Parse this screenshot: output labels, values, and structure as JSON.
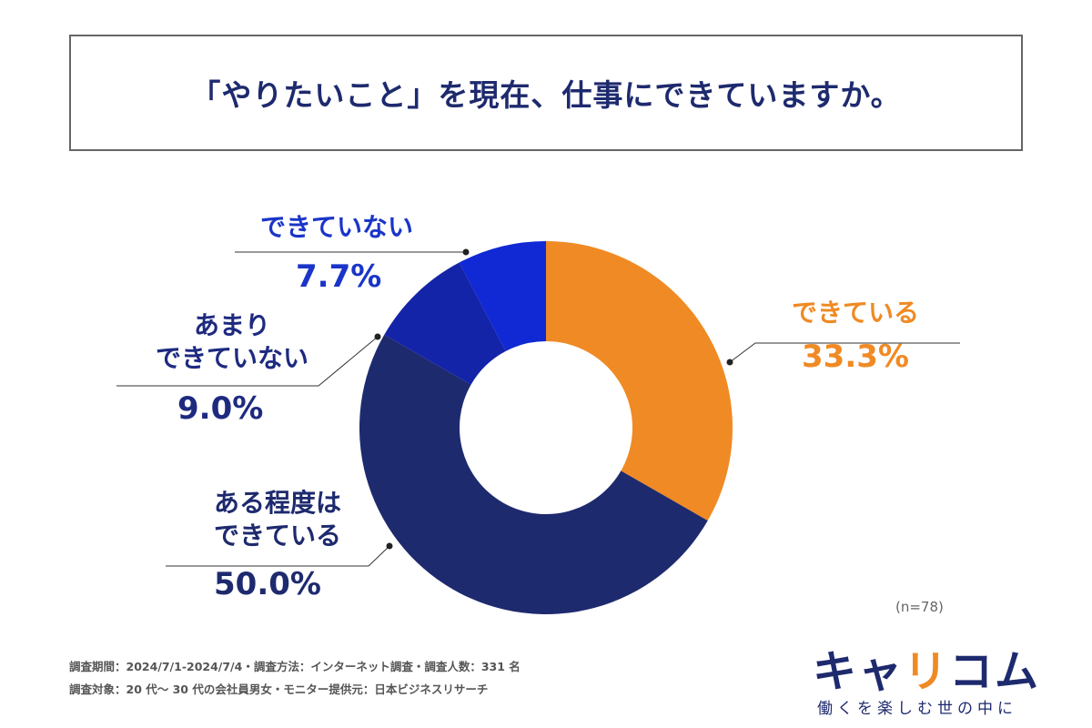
{
  "title": "「やりたいこと」を現在、仕事にできていますか。",
  "chart_data": {
    "type": "pie",
    "subtype": "donut",
    "title": "「やりたいこと」を現在、仕事にできていますか。",
    "slices": [
      {
        "label": "できている",
        "value": 33.3,
        "display": "33.3%",
        "color": "#f08a24"
      },
      {
        "label": "ある程度はできている",
        "label_lines": [
          "ある程度は",
          "できている"
        ],
        "value": 50.0,
        "display": "50.0%",
        "color": "#1e2a6e"
      },
      {
        "label": "あまりできていない",
        "label_lines": [
          "あまり",
          "できていない"
        ],
        "value": 9.0,
        "display": "9.0%",
        "color": "#1424a8"
      },
      {
        "label": "できていない",
        "value": 7.7,
        "display": "7.7%",
        "color": "#1029d4"
      }
    ],
    "sample": "(n=78)"
  },
  "footer": {
    "line1": "調査期間：2024/7/1-2024/7/4・調査方法：インターネット調査・調査人数：331 名",
    "line2": "調査対象：20 代〜 30 代の会社員男女・モニター提供元：日本ビジネスリサーチ"
  },
  "logo": {
    "text_a": "キャ",
    "text_b": "リ",
    "text_c": "コム",
    "tagline": "働くを楽しむ世の中に"
  }
}
